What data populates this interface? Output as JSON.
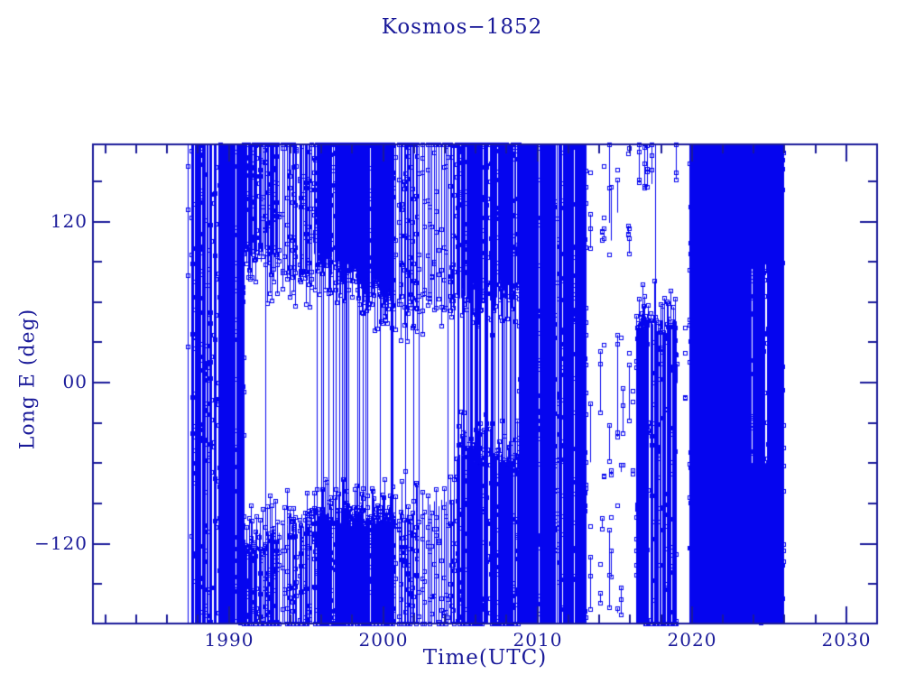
{
  "title": "Kosmos−1852",
  "chart_data": {
    "type": "scatter",
    "title": "Kosmos−1852",
    "xlabel": "Time(UTC)",
    "ylabel": "Long E (deg)",
    "xlim": [
      1981.2,
      2032.0
    ],
    "ylim": [
      -179.5,
      177.5
    ],
    "x_major_ticks": [
      1990,
      2000,
      2010,
      2020,
      2030
    ],
    "x_tick_labels": [
      "1990",
      "2000",
      "2010",
      "2020",
      "2030"
    ],
    "x_minor_step": 2,
    "y_major_ticks": [
      120,
      0,
      -120
    ],
    "y_tick_labels": [
      "120",
      "00",
      "−120"
    ],
    "y_minor_step": 30,
    "grid": "off",
    "legend": "none",
    "marker": "open-square-with-vertical-connectors",
    "colors": {
      "data": "#0505EF",
      "axis": "#1A1A99",
      "background": "#FFFFFF"
    },
    "data_time_range": [
      1987.25,
      2025.92
    ],
    "segments_note": "Dense wrapped-longitude scatter encoded as time segments with longitude coverage envelopes (degrees East) and relative column density read from the pixels.",
    "segments": [
      {
        "mode": "full",
        "t0": 1987.25,
        "t1": 1987.7,
        "step": 0.1,
        "presence": 0.5,
        "markers": 4
      },
      {
        "mode": "full",
        "t0": 1987.7,
        "t1": 1990.95,
        "step": 0.055,
        "presence": 0.82,
        "markers": 6
      },
      {
        "mode": "bands",
        "t0": 1990.95,
        "t1": 1995.5,
        "step": 0.07,
        "presence": 0.8,
        "connect": 0.08,
        "markers": 5,
        "bands": [
          {
            "topS": 180,
            "topE": 180,
            "botS": 100,
            "botE": 78,
            "edge": true
          },
          {
            "topS": -124,
            "topE": -100,
            "botS": -180,
            "botE": -180,
            "edge": true
          }
        ]
      },
      {
        "mode": "bands",
        "t0": 1995.5,
        "t1": 2000.6,
        "step": 0.05,
        "presence": 0.94,
        "connect": 0.22,
        "markers": 5,
        "bands": [
          {
            "topS": 180,
            "topE": 180,
            "botS": 95,
            "botE": 64,
            "edge": true
          },
          {
            "topS": -98,
            "topE": -104,
            "botS": -180,
            "botE": -180,
            "edge": true
          }
        ]
      },
      {
        "mode": "bands",
        "t0": 2000.6,
        "t1": 2004.7,
        "step": 0.085,
        "presence": 0.68,
        "connect": 0.2,
        "markers": 5,
        "bands": [
          {
            "topS": 180,
            "topE": 180,
            "botS": 62,
            "botE": 58,
            "edge": true
          },
          {
            "topS": -100,
            "topE": -92,
            "botS": -180,
            "botE": -180,
            "edge": true
          }
        ]
      },
      {
        "mode": "bands",
        "t0": 2004.7,
        "t1": 2008.8,
        "step": 0.055,
        "presence": 0.92,
        "connect": 0.5,
        "markers": 6,
        "bands": [
          {
            "topS": 180,
            "topE": 180,
            "botS": 66,
            "botE": 70,
            "edge": true
          },
          {
            "topS": -52,
            "topE": -58,
            "botS": -180,
            "botE": -180,
            "edge": true
          }
        ]
      },
      {
        "mode": "full",
        "t0": 2008.8,
        "t1": 2013.2,
        "step": 0.055,
        "presence": 0.9,
        "markers": 7
      },
      {
        "mode": "scatter",
        "t0": 2013.2,
        "t1": 2016.4,
        "step": 0.11,
        "presence": 0.55,
        "markers": 2,
        "bands": [
          [
            180,
            92
          ],
          [
            42,
            -70
          ],
          [
            -88,
            -180
          ]
        ]
      },
      {
        "mode": "bands",
        "t0": 2016.4,
        "t1": 2019.0,
        "step": 0.06,
        "presence": 0.85,
        "connect": 0.12,
        "markers": 6,
        "bands": [
          {
            "topS": 46,
            "topE": 42,
            "botS": -180,
            "botE": -180,
            "edge": true
          },
          {
            "topS": 180,
            "topE": 180,
            "botS": 152,
            "botE": 150,
            "p": 0.25
          }
        ]
      },
      {
        "mode": "scatter",
        "t0": 2019.0,
        "t1": 2019.85,
        "step": 0.13,
        "presence": 0.45,
        "markers": 2,
        "bands": [
          [
            178,
            148
          ],
          [
            55,
            -15
          ]
        ]
      },
      {
        "mode": "full",
        "t0": 2019.85,
        "t1": 2025.92,
        "step": 0.05,
        "presence": 1.0,
        "markers": 8,
        "gaps": [
          {
            "t0": 2023.82,
            "t1": 2023.93,
            "top": 88,
            "bot": -60
          },
          {
            "t0": 2024.72,
            "t1": 2024.8,
            "top": 88,
            "bot": -60
          }
        ]
      }
    ]
  }
}
